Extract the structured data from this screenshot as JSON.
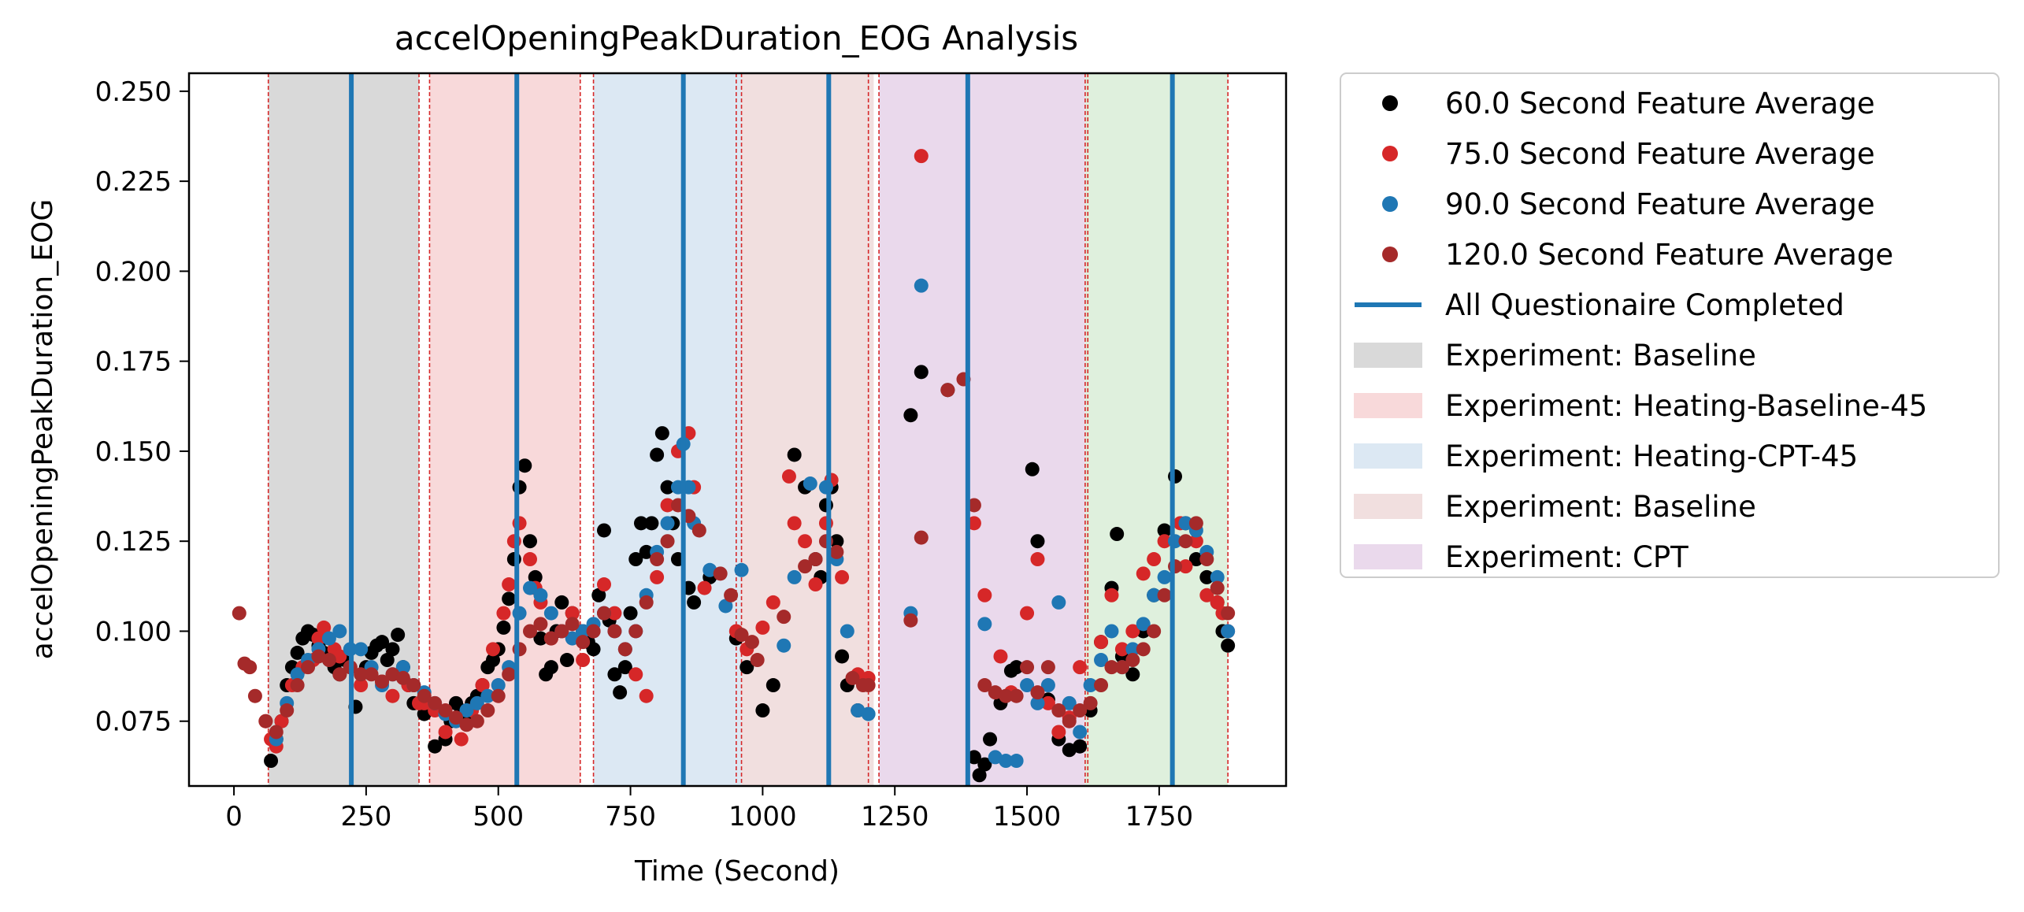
{
  "chart_data": {
    "type": "scatter",
    "title": "accelOpeningPeakDuration_EOG Analysis",
    "xlabel": "Time (Second)",
    "ylabel": "accelOpeningPeakDuration_EOG",
    "xlim": [
      -85,
      1990
    ],
    "ylim": [
      0.057,
      0.255
    ],
    "xticks": [
      0,
      250,
      500,
      750,
      1000,
      1250,
      1500,
      1750
    ],
    "xtick_labels": [
      "0",
      "250",
      "500",
      "750",
      "1000",
      "1250",
      "1500",
      "1750"
    ],
    "yticks": [
      0.075,
      0.1,
      0.125,
      0.15,
      0.175,
      0.2,
      0.225,
      0.25
    ],
    "ytick_labels": [
      "0.075",
      "0.100",
      "0.125",
      "0.150",
      "0.175",
      "0.200",
      "0.225",
      "0.250"
    ],
    "grid": false,
    "legend_position": "outside-right",
    "regions": [
      {
        "x0": 65,
        "x1": 350,
        "color": "#d9d9d9",
        "legend": "Experiment: Baseline"
      },
      {
        "x0": 370,
        "x1": 655,
        "color": "#f8d9da",
        "legend": "Experiment: Heating-Baseline-45"
      },
      {
        "x0": 680,
        "x1": 960,
        "color": "#dce8f3",
        "legend": "Experiment: Heating-CPT-45"
      },
      {
        "x0": 960,
        "x1": 1210,
        "color": "#f1dfdf",
        "legend": "Experiment: Baseline"
      },
      {
        "x0": 1220,
        "x1": 1610,
        "color": "#ead9ec",
        "legend": "Experiment: CPT"
      },
      {
        "x0": 1610,
        "x1": 1880,
        "color": "#dff0dd",
        "legend": null
      }
    ],
    "region_boundaries": [
      65,
      350,
      370,
      655,
      680,
      950,
      960,
      1200,
      1220,
      1610,
      1615,
      1880
    ],
    "questionnaire_completed": [
      222,
      535,
      850,
      1125,
      1388,
      1775
    ],
    "series": [
      {
        "name": "60.0 Second Feature Average",
        "color": "#000000",
        "x": [
          70,
          80,
          90,
          100,
          110,
          120,
          130,
          140,
          150,
          160,
          170,
          180,
          190,
          200,
          210,
          230,
          250,
          260,
          270,
          280,
          290,
          300,
          310,
          320,
          330,
          340,
          360,
          380,
          400,
          410,
          420,
          430,
          440,
          450,
          460,
          470,
          480,
          490,
          500,
          510,
          520,
          530,
          540,
          550,
          560,
          570,
          580,
          590,
          600,
          610,
          620,
          630,
          640,
          660,
          670,
          680,
          690,
          700,
          710,
          720,
          730,
          740,
          750,
          760,
          770,
          780,
          790,
          800,
          810,
          820,
          830,
          840,
          860,
          870,
          900,
          950,
          970,
          1000,
          1020,
          1060,
          1080,
          1100,
          1110,
          1120,
          1130,
          1140,
          1150,
          1160,
          1180,
          1280,
          1300,
          1350,
          1400,
          1410,
          1420,
          1430,
          1450,
          1470,
          1480,
          1510,
          1520,
          1540,
          1560,
          1580,
          1600,
          1620,
          1640,
          1660,
          1670,
          1680,
          1700,
          1720,
          1740,
          1760,
          1780,
          1800,
          1820,
          1840,
          1860,
          1870,
          1880
        ],
        "y": [
          0.064,
          0.07,
          0.075,
          0.085,
          0.09,
          0.094,
          0.098,
          0.1,
          0.099,
          0.096,
          0.094,
          0.092,
          0.09,
          0.088,
          0.092,
          0.079,
          0.09,
          0.094,
          0.096,
          0.097,
          0.092,
          0.095,
          0.099,
          0.09,
          0.085,
          0.08,
          0.077,
          0.068,
          0.07,
          0.075,
          0.08,
          0.078,
          0.076,
          0.08,
          0.082,
          0.085,
          0.09,
          0.092,
          0.095,
          0.101,
          0.109,
          0.12,
          0.14,
          0.146,
          0.125,
          0.115,
          0.098,
          0.088,
          0.09,
          0.1,
          0.108,
          0.092,
          0.105,
          0.1,
          0.097,
          0.095,
          0.11,
          0.128,
          0.103,
          0.088,
          0.083,
          0.09,
          0.105,
          0.12,
          0.13,
          0.122,
          0.13,
          0.149,
          0.155,
          0.14,
          0.13,
          0.12,
          0.112,
          0.108,
          0.115,
          0.098,
          0.09,
          0.078,
          0.085,
          0.149,
          0.14,
          0.12,
          0.115,
          0.135,
          0.14,
          0.125,
          0.093,
          0.085,
          0.078,
          0.16,
          0.172,
          0.167,
          0.065,
          0.06,
          0.063,
          0.07,
          0.08,
          0.089,
          0.09,
          0.145,
          0.125,
          0.081,
          0.07,
          0.067,
          0.068,
          0.078,
          0.097,
          0.112,
          0.127,
          0.093,
          0.088,
          0.1,
          0.11,
          0.128,
          0.143,
          0.13,
          0.12,
          0.115,
          0.108,
          0.1,
          0.096
        ]
      },
      {
        "name": "75.0 Second Feature Average",
        "color": "#d62728",
        "x": [
          60,
          70,
          80,
          90,
          110,
          130,
          150,
          160,
          170,
          190,
          200,
          220,
          240,
          280,
          300,
          330,
          350,
          360,
          380,
          400,
          430,
          450,
          470,
          490,
          510,
          520,
          530,
          540,
          560,
          570,
          580,
          600,
          620,
          640,
          660,
          680,
          700,
          720,
          740,
          760,
          780,
          800,
          820,
          840,
          860,
          870,
          890,
          950,
          970,
          1000,
          1020,
          1050,
          1060,
          1080,
          1100,
          1120,
          1130,
          1150,
          1180,
          1200,
          1300,
          1400,
          1420,
          1450,
          1470,
          1500,
          1520,
          1540,
          1560,
          1580,
          1600,
          1640,
          1660,
          1680,
          1700,
          1720,
          1740,
          1760,
          1790,
          1800,
          1820,
          1840,
          1860,
          1870,
          1880
        ],
        "y": [
          0.075,
          0.07,
          0.068,
          0.075,
          0.085,
          0.09,
          0.092,
          0.098,
          0.101,
          0.095,
          0.093,
          0.09,
          0.085,
          0.086,
          0.082,
          0.085,
          0.08,
          0.08,
          0.078,
          0.072,
          0.07,
          0.078,
          0.085,
          0.095,
          0.105,
          0.113,
          0.125,
          0.13,
          0.12,
          0.112,
          0.108,
          0.098,
          0.1,
          0.105,
          0.092,
          0.1,
          0.113,
          0.105,
          0.095,
          0.088,
          0.082,
          0.115,
          0.135,
          0.15,
          0.155,
          0.14,
          0.112,
          0.1,
          0.095,
          0.101,
          0.108,
          0.143,
          0.13,
          0.125,
          0.113,
          0.13,
          0.142,
          0.115,
          0.088,
          0.087,
          0.232,
          0.13,
          0.11,
          0.093,
          0.083,
          0.105,
          0.12,
          0.08,
          0.072,
          0.076,
          0.09,
          0.097,
          0.11,
          0.095,
          0.1,
          0.116,
          0.12,
          0.125,
          0.13,
          0.118,
          0.125,
          0.11,
          0.108,
          0.105,
          0.1
        ]
      },
      {
        "name": "90.0 Second Feature Average",
        "color": "#1f77b4",
        "x": [
          80,
          100,
          120,
          140,
          160,
          180,
          200,
          220,
          240,
          260,
          280,
          300,
          320,
          340,
          360,
          380,
          400,
          420,
          440,
          460,
          480,
          500,
          520,
          540,
          560,
          580,
          600,
          620,
          640,
          660,
          680,
          700,
          720,
          740,
          760,
          780,
          800,
          820,
          840,
          850,
          860,
          870,
          900,
          930,
          960,
          1040,
          1060,
          1090,
          1120,
          1140,
          1160,
          1180,
          1200,
          1280,
          1300,
          1420,
          1440,
          1460,
          1480,
          1500,
          1520,
          1540,
          1560,
          1580,
          1600,
          1620,
          1640,
          1660,
          1680,
          1700,
          1720,
          1740,
          1760,
          1780,
          1800,
          1820,
          1840,
          1860,
          1880
        ],
        "y": [
          0.07,
          0.08,
          0.088,
          0.092,
          0.095,
          0.098,
          0.1,
          0.095,
          0.095,
          0.09,
          0.085,
          0.088,
          0.09,
          0.085,
          0.083,
          0.08,
          0.077,
          0.075,
          0.078,
          0.08,
          0.082,
          0.085,
          0.09,
          0.105,
          0.112,
          0.11,
          0.105,
          0.1,
          0.098,
          0.1,
          0.102,
          0.105,
          0.1,
          0.095,
          0.1,
          0.11,
          0.122,
          0.13,
          0.14,
          0.152,
          0.14,
          0.13,
          0.117,
          0.107,
          0.117,
          0.096,
          0.115,
          0.141,
          0.14,
          0.12,
          0.1,
          0.078,
          0.077,
          0.105,
          0.196,
          0.102,
          0.065,
          0.064,
          0.064,
          0.085,
          0.08,
          0.085,
          0.108,
          0.08,
          0.072,
          0.085,
          0.092,
          0.1,
          0.09,
          0.095,
          0.102,
          0.11,
          0.115,
          0.125,
          0.13,
          0.128,
          0.122,
          0.115,
          0.1
        ]
      },
      {
        "name": "120.0 Second Feature Average",
        "color": "#a52a2a",
        "x": [
          10,
          20,
          30,
          40,
          60,
          80,
          100,
          120,
          140,
          160,
          180,
          200,
          220,
          240,
          260,
          280,
          300,
          320,
          340,
          360,
          380,
          400,
          420,
          440,
          460,
          480,
          500,
          520,
          540,
          560,
          580,
          600,
          620,
          640,
          660,
          680,
          700,
          720,
          740,
          760,
          780,
          800,
          820,
          840,
          860,
          880,
          920,
          940,
          960,
          980,
          990,
          1040,
          1080,
          1100,
          1120,
          1140,
          1170,
          1190,
          1200,
          1280,
          1300,
          1350,
          1380,
          1400,
          1420,
          1440,
          1460,
          1480,
          1500,
          1520,
          1540,
          1560,
          1580,
          1600,
          1620,
          1640,
          1660,
          1680,
          1700,
          1720,
          1740,
          1760,
          1780,
          1800,
          1820,
          1840,
          1860,
          1880
        ],
        "y": [
          0.105,
          0.091,
          0.09,
          0.082,
          0.075,
          0.072,
          0.078,
          0.085,
          0.09,
          0.093,
          0.092,
          0.088,
          0.09,
          0.088,
          0.088,
          0.086,
          0.088,
          0.087,
          0.085,
          0.082,
          0.08,
          0.078,
          0.076,
          0.074,
          0.075,
          0.078,
          0.082,
          0.088,
          0.095,
          0.1,
          0.102,
          0.098,
          0.1,
          0.102,
          0.097,
          0.1,
          0.105,
          0.1,
          0.095,
          0.1,
          0.108,
          0.12,
          0.125,
          0.135,
          0.132,
          0.128,
          0.116,
          0.11,
          0.099,
          0.097,
          0.092,
          0.104,
          0.118,
          0.12,
          0.125,
          0.122,
          0.087,
          0.085,
          0.085,
          0.103,
          0.126,
          0.167,
          0.17,
          0.135,
          0.085,
          0.083,
          0.082,
          0.082,
          0.09,
          0.083,
          0.09,
          0.078,
          0.075,
          0.078,
          0.08,
          0.085,
          0.09,
          0.09,
          0.092,
          0.095,
          0.1,
          0.11,
          0.118,
          0.125,
          0.13,
          0.12,
          0.112,
          0.105
        ]
      }
    ],
    "legend": [
      {
        "kind": "marker",
        "label": "60.0 Second Feature Average",
        "color": "#000000"
      },
      {
        "kind": "marker",
        "label": "75.0 Second Feature Average",
        "color": "#d62728"
      },
      {
        "kind": "marker",
        "label": "90.0 Second Feature Average",
        "color": "#1f77b4"
      },
      {
        "kind": "marker",
        "label": "120.0 Second Feature Average",
        "color": "#a52a2a"
      },
      {
        "kind": "line",
        "label": "All Questionaire Completed",
        "color": "#1f77b4"
      },
      {
        "kind": "patch",
        "label": "Experiment: Baseline",
        "color": "#d9d9d9"
      },
      {
        "kind": "patch",
        "label": "Experiment: Heating-Baseline-45",
        "color": "#f8d9da"
      },
      {
        "kind": "patch",
        "label": "Experiment: Heating-CPT-45",
        "color": "#dce8f3"
      },
      {
        "kind": "patch",
        "label": "Experiment: Baseline",
        "color": "#f1dfdf"
      },
      {
        "kind": "patch",
        "label": "Experiment: CPT",
        "color": "#ead9ec"
      }
    ]
  }
}
